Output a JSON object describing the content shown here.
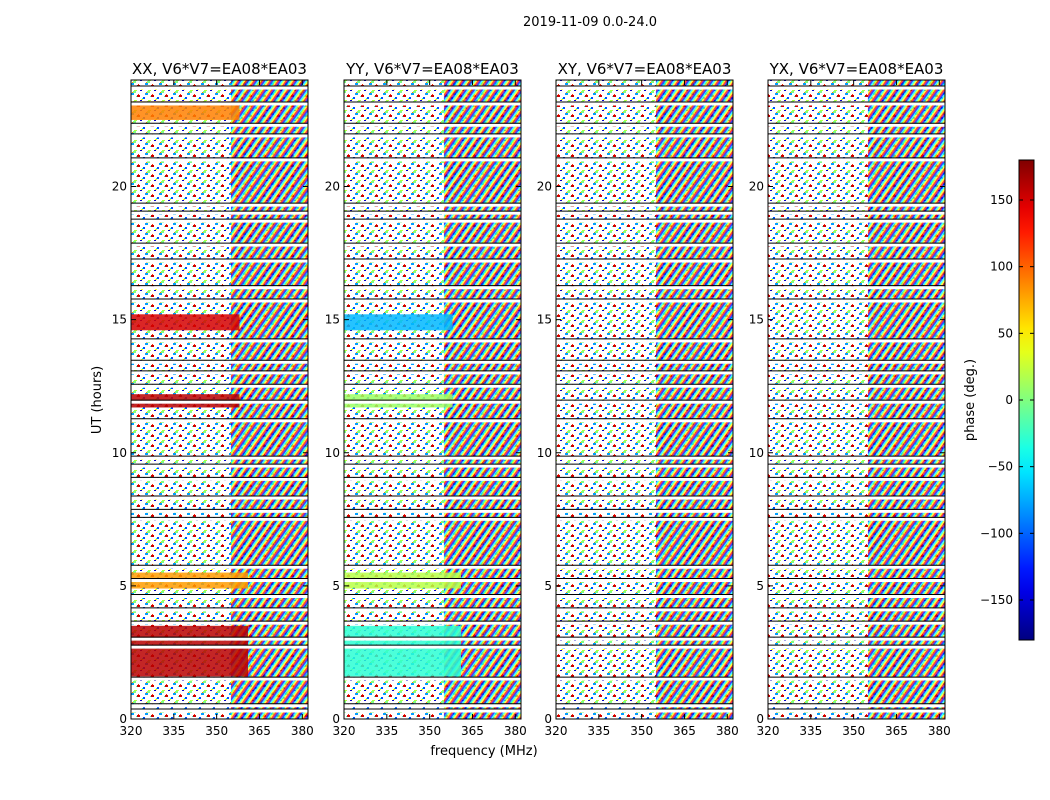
{
  "chart_data": {
    "type": "heatmap",
    "suptitle": "2019-11-09 0.0-24.0",
    "xlabel": "frequency (MHz)",
    "ylabel": "UT (hours)",
    "xlim": [
      320,
      382
    ],
    "ylim": [
      0,
      24
    ],
    "x_ticks": [
      320,
      335,
      350,
      365,
      380
    ],
    "y_ticks": [
      0,
      5,
      10,
      15,
      20
    ],
    "panels": [
      {
        "title": "XX, V6*V7=EA08*EA03",
        "warm_regions": [
          {
            "x": [
              320,
              361
            ],
            "y": [
              1.6,
              3.5
            ],
            "phase": 160
          },
          {
            "x": [
              320,
              361
            ],
            "y": [
              4.9,
              5.5
            ],
            "phase": 80
          },
          {
            "x": [
              320,
              358
            ],
            "y": [
              14.6,
              15.2
            ],
            "phase": 150
          },
          {
            "x": [
              320,
              358
            ],
            "y": [
              11.7,
              12.2
            ],
            "phase": 160
          },
          {
            "x": [
              320,
              358
            ],
            "y": [
              22.5,
              23.2
            ],
            "phase": 90
          }
        ]
      },
      {
        "title": "YY, V6*V7=EA08*EA03",
        "warm_regions": [
          {
            "x": [
              320,
              361
            ],
            "y": [
              1.6,
              3.5
            ],
            "phase": -30
          },
          {
            "x": [
              320,
              361
            ],
            "y": [
              4.9,
              5.5
            ],
            "phase": 20
          },
          {
            "x": [
              320,
              358
            ],
            "y": [
              14.6,
              15.2
            ],
            "phase": -70
          },
          {
            "x": [
              320,
              358
            ],
            "y": [
              11.7,
              12.2
            ],
            "phase": 10
          }
        ]
      },
      {
        "title": "XY, V6*V7=EA08*EA03",
        "warm_regions": []
      },
      {
        "title": "YX, V6*V7=EA08*EA03",
        "warm_regions": []
      }
    ],
    "flagged_hours": [
      0.3,
      0.5,
      1.5,
      2.7,
      3.0,
      3.6,
      4.1,
      4.6,
      5.2,
      5.7,
      7.5,
      7.8,
      8.3,
      9.0,
      9.5,
      9.8,
      11.2,
      11.9,
      12.5,
      13.0,
      13.4,
      14.2,
      15.7,
      16.2,
      17.2,
      17.8,
      18.7,
      19.0,
      19.3,
      21.0,
      21.9,
      22.3,
      23.1,
      23.7
    ],
    "colorbar": {
      "label": "phase (deg.)",
      "range": [
        -180,
        180
      ],
      "ticks": [
        150,
        100,
        50,
        0,
        -50,
        -100,
        -150
      ],
      "tick_labels": [
        "150",
        "100",
        "50",
        "0",
        "−50",
        "−100",
        "−150"
      ],
      "colormap": "jet"
    }
  }
}
